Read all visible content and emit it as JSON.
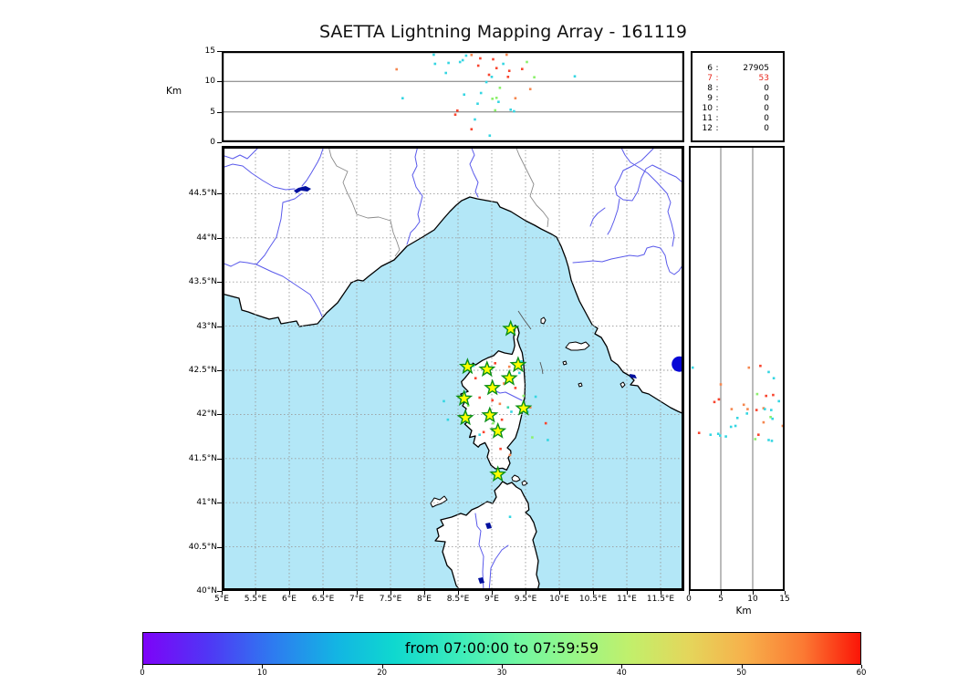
{
  "title": "SAETTA Lightning Mapping Array - 161119",
  "colors": {
    "sea": "#b3e7f7",
    "land": "#ffffff",
    "coast": "#000000",
    "river": "#5a5aeb",
    "country_border": "#8a8a8a",
    "lake": "#000f9e",
    "large_marker": "#0707d6",
    "grid": "#9a9a9a",
    "panel_grid": "#777777",
    "station_fill": "#ffff00",
    "station_edge": "#0a9018",
    "highlight_text": "#e8281e"
  },
  "palette": {
    "c": "#35d6e2",
    "r": "#f8452f",
    "o": "#f5874f",
    "g": "#8cf06c",
    "t": "#38d6ac"
  },
  "axes": {
    "km_label_top": "Km",
    "km_label_right": "Km",
    "lon_labels": [
      "5°E",
      "5.5°E",
      "6°E",
      "6.5°E",
      "7°E",
      "7.5°E",
      "8°E",
      "8.5°E",
      "9°E",
      "9.5°E",
      "10°E",
      "10.5°E",
      "11°E",
      "11.5°E"
    ],
    "lat_labels": [
      "44.5°N",
      "44°N",
      "43.5°N",
      "43°N",
      "42.5°N",
      "42°N",
      "41.5°N",
      "41°N",
      "40.5°N",
      "40°N"
    ],
    "top_alt_labels": [
      "15",
      "10",
      "5",
      "0"
    ],
    "right_alt_labels": [
      "0",
      "5",
      "10",
      "15"
    ]
  },
  "stats": {
    "rows": [
      {
        "level": "6",
        "count": "27905",
        "highlight": false
      },
      {
        "level": "7",
        "count": "53",
        "highlight": true
      },
      {
        "level": "8",
        "count": "0",
        "highlight": false
      },
      {
        "level": "9",
        "count": "0",
        "highlight": false
      },
      {
        "level": "10",
        "count": "0",
        "highlight": false
      },
      {
        "level": "11",
        "count": "0",
        "highlight": false
      },
      {
        "level": "12",
        "count": "0",
        "highlight": false
      }
    ]
  },
  "colorbar": {
    "label": "from 07:00:00 to 07:59:59",
    "tick_labels": [
      "0",
      "10",
      "20",
      "30",
      "40",
      "50",
      "60"
    ],
    "gradient": [
      "#7e03f8",
      "#2e7af0",
      "#0fd8cf",
      "#6ff7a3",
      "#c2ef6b",
      "#f7b04b",
      "#fb1507"
    ]
  },
  "chart_data": [
    {
      "type": "scatter",
      "name": "altitude-vs-longitude",
      "xlabel": "",
      "ylabel": "Km",
      "xlim": [
        5,
        11.85
      ],
      "ylim": [
        0,
        15
      ],
      "yticks": [
        0,
        5,
        10,
        15
      ],
      "grid": "horizontal",
      "points": [
        [
          8.14,
          14.4,
          "c"
        ],
        [
          8.45,
          14.9,
          "g"
        ],
        [
          8.62,
          14.25,
          "c"
        ],
        [
          8.7,
          14.35,
          "o"
        ],
        [
          8.83,
          13.8,
          "r"
        ],
        [
          9.02,
          13.65,
          "r"
        ],
        [
          9.22,
          14.4,
          "o"
        ],
        [
          9.78,
          14.9,
          "o"
        ],
        [
          7.59,
          12.0,
          "o"
        ],
        [
          8.16,
          12.9,
          "c"
        ],
        [
          8.36,
          13.05,
          "c"
        ],
        [
          8.53,
          13.2,
          "c"
        ],
        [
          8.57,
          13.5,
          "c"
        ],
        [
          8.8,
          12.6,
          "r"
        ],
        [
          9.17,
          12.9,
          "c"
        ],
        [
          9.52,
          13.2,
          "g"
        ],
        [
          8.32,
          11.4,
          "c"
        ],
        [
          8.96,
          11.1,
          "r"
        ],
        [
          9.0,
          10.75,
          "c"
        ],
        [
          9.07,
          12.2,
          "r"
        ],
        [
          9.24,
          10.75,
          "r"
        ],
        [
          9.26,
          11.75,
          "r"
        ],
        [
          9.45,
          12.05,
          "r"
        ],
        [
          9.63,
          10.7,
          "g"
        ],
        [
          10.23,
          10.85,
          "c"
        ],
        [
          8.92,
          9.9,
          "c"
        ],
        [
          9.12,
          8.95,
          "g"
        ],
        [
          8.59,
          7.85,
          "c"
        ],
        [
          8.84,
          8.1,
          "c"
        ],
        [
          9.57,
          8.75,
          "o"
        ],
        [
          7.68,
          7.25,
          "c"
        ],
        [
          9.01,
          7.15,
          "g"
        ],
        [
          9.07,
          7.3,
          "g"
        ],
        [
          9.1,
          6.65,
          "c"
        ],
        [
          8.79,
          6.35,
          "c"
        ],
        [
          9.35,
          7.25,
          "o"
        ],
        [
          9.05,
          5.25,
          "g"
        ],
        [
          9.28,
          5.35,
          "c"
        ],
        [
          9.33,
          5.1,
          "c"
        ],
        [
          8.49,
          5.2,
          "r"
        ],
        [
          8.46,
          4.55,
          "r"
        ],
        [
          8.75,
          3.75,
          "c"
        ],
        [
          8.7,
          2.15,
          "r"
        ],
        [
          8.97,
          1.1,
          "c"
        ]
      ]
    },
    {
      "type": "scatter",
      "name": "map-lon-lat",
      "xlim": [
        5,
        11.85
      ],
      "ylim": [
        40,
        45.04
      ],
      "lon_ticks_deg": [
        5,
        5.5,
        6,
        6.5,
        7,
        7.5,
        8,
        8.5,
        9,
        9.5,
        10,
        10.5,
        11,
        11.5
      ],
      "lat_ticks_deg": [
        44.5,
        44,
        43.5,
        43,
        42.5,
        42,
        41.5,
        41,
        40.5,
        40
      ],
      "grid": "dashed-both",
      "stations": [
        [
          9.28,
          42.97
        ],
        [
          8.64,
          42.54
        ],
        [
          8.93,
          42.51
        ],
        [
          9.39,
          42.56
        ],
        [
          9.26,
          42.41
        ],
        [
          9.01,
          42.3
        ],
        [
          8.59,
          42.18
        ],
        [
          9.47,
          42.07
        ],
        [
          8.61,
          41.96
        ],
        [
          8.97,
          41.99
        ],
        [
          9.09,
          41.81
        ],
        [
          9.09,
          41.32
        ]
      ],
      "large_marker": {
        "lon": 11.78,
        "lat": 42.57
      },
      "points": [
        [
          8.95,
          42.53,
          "c"
        ],
        [
          9.05,
          42.58,
          "r"
        ],
        [
          9.26,
          42.54,
          "o"
        ],
        [
          8.76,
          42.41,
          "r"
        ],
        [
          9.41,
          42.47,
          "c"
        ],
        [
          8.82,
          42.19,
          "r"
        ],
        [
          9.01,
          42.16,
          "r"
        ],
        [
          9.12,
          42.12,
          "o"
        ],
        [
          9.24,
          42.08,
          "t"
        ],
        [
          9.29,
          42.03,
          "c"
        ],
        [
          9.53,
          42.03,
          "c"
        ],
        [
          9.6,
          41.74,
          "g"
        ],
        [
          8.82,
          41.77,
          "c"
        ],
        [
          8.88,
          41.8,
          "r"
        ],
        [
          8.35,
          41.94,
          "c"
        ],
        [
          8.29,
          42.15,
          "c"
        ],
        [
          9.13,
          41.61,
          "r"
        ],
        [
          9.57,
          42.08,
          "o"
        ],
        [
          9.8,
          41.9,
          "r"
        ],
        [
          9.83,
          41.71,
          "c"
        ],
        [
          9.27,
          41.54,
          "o"
        ],
        [
          8.6,
          42.25,
          "c"
        ],
        [
          8.73,
          42.55,
          "c"
        ],
        [
          9.35,
          42.3,
          "r"
        ],
        [
          9.47,
          42.21,
          "g"
        ],
        [
          9.02,
          41.9,
          "g"
        ],
        [
          9.18,
          42.35,
          "o"
        ],
        [
          9.65,
          42.2,
          "c"
        ],
        [
          9.27,
          40.84,
          "c"
        ],
        [
          9.44,
          42.6,
          "c"
        ],
        [
          8.65,
          42.1,
          "g"
        ],
        [
          9.15,
          41.94,
          "r"
        ]
      ]
    },
    {
      "type": "scatter",
      "name": "altitude-vs-latitude",
      "xlabel": "Km",
      "xlim": [
        0,
        15
      ],
      "ylim": [
        40,
        45.04
      ],
      "xticks": [
        0,
        5,
        10,
        15
      ],
      "grid": "vertical",
      "points": [
        [
          0.6,
          42.53,
          "c"
        ],
        [
          9.4,
          42.53,
          "o"
        ],
        [
          11.2,
          42.55,
          "r"
        ],
        [
          12.5,
          42.48,
          "c"
        ],
        [
          13.3,
          42.41,
          "c"
        ],
        [
          5.0,
          42.34,
          "o"
        ],
        [
          10.7,
          42.23,
          "g"
        ],
        [
          12.1,
          42.21,
          "r"
        ],
        [
          13.2,
          42.22,
          "r"
        ],
        [
          14.1,
          42.15,
          "c"
        ],
        [
          4.0,
          42.14,
          "r"
        ],
        [
          4.7,
          42.17,
          "r"
        ],
        [
          6.7,
          42.06,
          "o"
        ],
        [
          8.6,
          42.11,
          "o"
        ],
        [
          9.2,
          42.06,
          "o"
        ],
        [
          10.6,
          42.05,
          "r"
        ],
        [
          11.7,
          42.07,
          "o"
        ],
        [
          11.9,
          42.06,
          "c"
        ],
        [
          12.9,
          42.05,
          "c"
        ],
        [
          7.6,
          41.96,
          "c"
        ],
        [
          9.1,
          42.01,
          "c"
        ],
        [
          12.8,
          41.97,
          "g"
        ],
        [
          13.1,
          41.95,
          "c"
        ],
        [
          14.7,
          41.87,
          "o"
        ],
        [
          11.7,
          41.91,
          "o"
        ],
        [
          6.6,
          41.86,
          "c"
        ],
        [
          7.3,
          41.87,
          "c"
        ],
        [
          1.6,
          41.79,
          "r"
        ],
        [
          3.4,
          41.77,
          "c"
        ],
        [
          4.6,
          41.78,
          "c"
        ],
        [
          4.9,
          41.76,
          "c"
        ],
        [
          5.8,
          41.75,
          "c"
        ],
        [
          10.9,
          41.77,
          "r"
        ],
        [
          10.4,
          41.72,
          "g"
        ],
        [
          12.5,
          41.71,
          "c"
        ],
        [
          13.0,
          41.7,
          "c"
        ]
      ]
    }
  ]
}
